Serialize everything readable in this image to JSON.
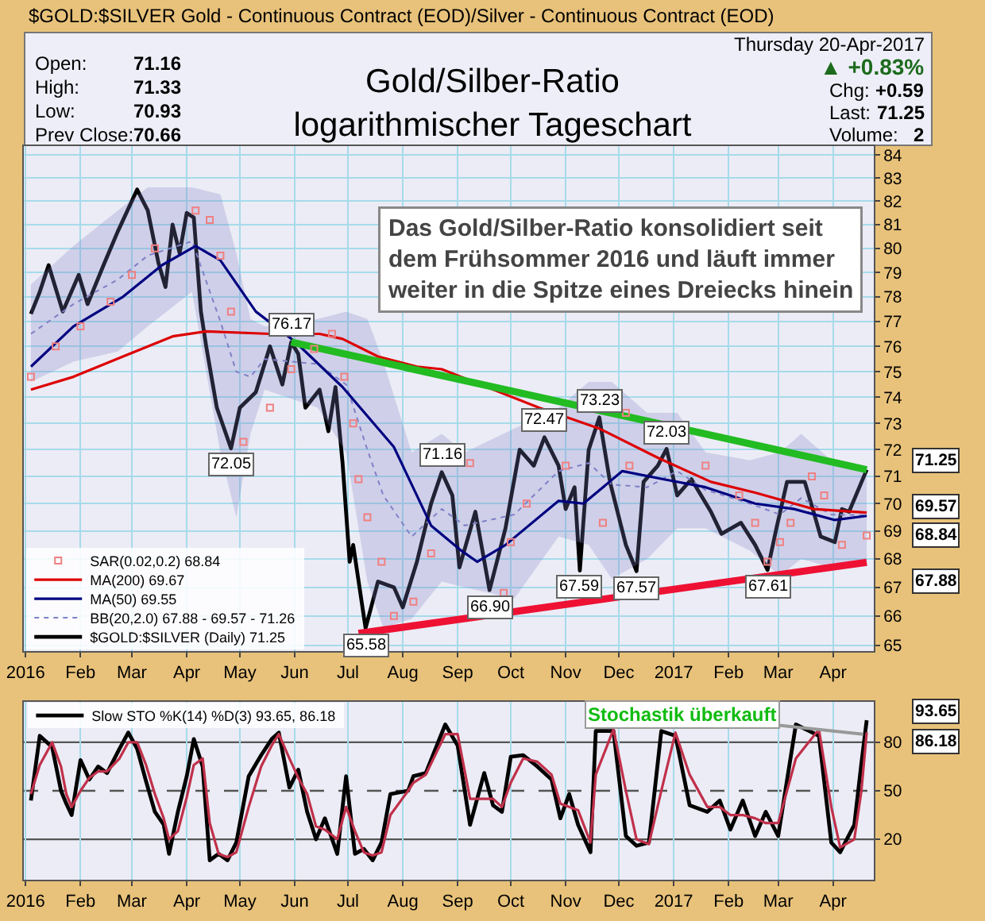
{
  "chart_data": [
    {
      "type": "line",
      "title": "Gold/Silber-Ratio\nlogarithmischer Tageschart",
      "subtitle": "$GOLD:$SILVER Gold - Continuous Contract (EOD)/Silver - Continuous Contract (EOD)",
      "x": [
        "2016-01-04",
        "2016-01-09",
        "2016-01-14",
        "2016-01-22",
        "2016-01-31",
        "2016-02-05",
        "2016-02-14",
        "2016-02-22",
        "2016-03-04",
        "2016-03-10",
        "2016-03-16",
        "2016-03-20",
        "2016-03-24",
        "2016-03-28",
        "2016-04-01",
        "2016-04-05",
        "2016-04-09",
        "2016-04-12",
        "2016-04-18",
        "2016-04-26",
        "2016-05-01",
        "2016-05-10",
        "2016-05-18",
        "2016-05-25",
        "2016-05-30",
        "2016-06-03",
        "2016-06-07",
        "2016-06-15",
        "2016-06-20",
        "2016-06-24",
        "2016-06-28",
        "2016-07-02",
        "2016-07-04",
        "2016-07-11",
        "2016-07-18",
        "2016-07-27",
        "2016-08-01",
        "2016-08-09",
        "2016-08-17",
        "2016-08-23",
        "2016-08-29",
        "2016-09-02",
        "2016-09-11",
        "2016-09-19",
        "2016-09-28",
        "2016-10-06",
        "2016-10-14",
        "2016-10-20",
        "2016-10-28",
        "2016-11-01",
        "2016-11-06",
        "2016-11-09",
        "2016-11-14",
        "2016-11-20",
        "2016-11-26",
        "2016-12-05",
        "2016-12-11",
        "2016-12-15",
        "2016-12-23",
        "2016-12-28",
        "2017-01-03",
        "2017-01-11",
        "2017-01-22",
        "2017-01-28",
        "2017-02-08",
        "2017-02-16",
        "2017-02-23",
        "2017-02-28",
        "2017-03-06",
        "2017-03-16",
        "2017-03-21",
        "2017-03-25",
        "2017-04-02",
        "2017-04-06",
        "2017-04-10",
        "2017-04-20"
      ],
      "series": [
        {
          "name": "$GOLD:$SILVER (Daily) 71.25",
          "color": "#000000",
          "values": [
            77.3,
            78.2,
            79.3,
            77.4,
            78.9,
            77.7,
            79.3,
            80.7,
            82.5,
            81.6,
            79.4,
            78.4,
            81.0,
            79.8,
            81.5,
            81.3,
            77.4,
            76.0,
            73.6,
            72.05,
            73.6,
            74.2,
            76.0,
            74.5,
            76.17,
            75.7,
            73.6,
            74.3,
            72.7,
            74.4,
            71.5,
            67.9,
            68.5,
            65.58,
            67.2,
            67.0,
            66.3,
            67.9,
            70.0,
            71.16,
            70.3,
            67.7,
            69.7,
            66.9,
            69.1,
            72.0,
            71.4,
            72.47,
            71.4,
            69.8,
            70.6,
            67.59,
            72.0,
            73.23,
            70.8,
            68.5,
            67.57,
            70.8,
            71.4,
            72.03,
            70.3,
            70.9,
            69.7,
            68.9,
            69.3,
            68.5,
            67.61,
            69.1,
            70.8,
            70.8,
            69.7,
            68.8,
            68.6,
            69.8,
            69.7,
            71.25
          ]
        },
        {
          "name": "BB(20,2.0) 67.88 - 69.57 - 71.26",
          "color": "#8080c8",
          "line_style": "dotted",
          "x": [
            "2016-01-04",
            "2016-01-28",
            "2016-02-22",
            "2016-03-10",
            "2016-04-04",
            "2016-04-20",
            "2016-04-29",
            "2016-05-07",
            "2016-05-15",
            "2016-06-14",
            "2016-06-30",
            "2016-07-12",
            "2016-07-21",
            "2016-08-06",
            "2016-08-23",
            "2016-09-05",
            "2016-10-03",
            "2016-10-28",
            "2016-11-14",
            "2016-11-27",
            "2016-12-17",
            "2017-01-03",
            "2017-01-19",
            "2017-02-13",
            "2017-03-02",
            "2017-03-14",
            "2017-03-31",
            "2017-04-20"
          ],
          "values": [
            76.5,
            77.7,
            78.7,
            79.7,
            80.3,
            77.0,
            75.0,
            74.8,
            75.5,
            75.3,
            74.5,
            72.0,
            70.3,
            68.8,
            69.8,
            69.2,
            69.6,
            71.2,
            71.5,
            70.7,
            70.6,
            71.2,
            70.5,
            70.0,
            69.6,
            70.2,
            69.6,
            69.57
          ],
          "lower": [
            74.6,
            75.4,
            75.8,
            76.8,
            78.2,
            71.9,
            69.5,
            72.6,
            74.3,
            73.6,
            71.9,
            67.2,
            65.6,
            65.9,
            67.2,
            67.0,
            66.6,
            68.8,
            68.5,
            67.3,
            68.0,
            69.1,
            69.1,
            68.3,
            67.4,
            68.0,
            67.7,
            67.88
          ],
          "upper": [
            78.5,
            80.1,
            81.6,
            82.6,
            82.6,
            82.3,
            79.8,
            77.1,
            76.8,
            77.1,
            77.4,
            77.1,
            75.4,
            71.9,
            72.6,
            71.9,
            72.8,
            73.6,
            74.6,
            74.6,
            73.4,
            73.4,
            71.9,
            71.6,
            71.9,
            72.6,
            71.6,
            71.26
          ]
        },
        {
          "name": "SAR(0.02,0.2) 68.84",
          "type": "scatter",
          "marker": "square",
          "color": "#f08080",
          "x": [
            "2016-01-04",
            "2016-01-18",
            "2016-02-01",
            "2016-02-18",
            "2016-03-01",
            "2016-03-14",
            "2016-04-06",
            "2016-04-14",
            "2016-04-20",
            "2016-04-26",
            "2016-05-03",
            "2016-05-18",
            "2016-05-30",
            "2016-06-12",
            "2016-06-22",
            "2016-06-29",
            "2016-07-04",
            "2016-07-07",
            "2016-07-12",
            "2016-07-20",
            "2016-07-27",
            "2016-08-07",
            "2016-08-17",
            "2016-09-08",
            "2016-09-27",
            "2016-10-01",
            "2016-10-10",
            "2016-11-01",
            "2016-11-22",
            "2016-12-05",
            "2016-12-07",
            "2017-01-19",
            "2017-02-07",
            "2017-02-16",
            "2017-02-23",
            "2017-03-02",
            "2017-03-08",
            "2017-03-20",
            "2017-03-27",
            "2017-04-06",
            "2017-04-20"
          ],
          "values": [
            74.8,
            76.0,
            76.8,
            77.8,
            78.9,
            80.0,
            81.6,
            81.2,
            79.7,
            77.4,
            72.3,
            73.6,
            75.1,
            75.9,
            76.5,
            74.8,
            73.0,
            70.9,
            69.5,
            67.9,
            66.0,
            66.5,
            68.2,
            71.5,
            66.8,
            68.6,
            70.0,
            71.4,
            69.3,
            73.4,
            71.4,
            71.4,
            70.3,
            69.3,
            67.9,
            68.6,
            69.3,
            71.0,
            70.3,
            68.5,
            68.84
          ]
        },
        {
          "name": "MA(50) 69.55",
          "color": "#000080",
          "x": [
            "2016-01-04",
            "2016-01-28",
            "2016-02-25",
            "2016-03-18",
            "2016-04-06",
            "2016-04-20",
            "2016-05-10",
            "2016-06-01",
            "2016-06-28",
            "2016-07-27",
            "2016-08-17",
            "2016-09-03",
            "2016-09-12",
            "2016-09-28",
            "2016-10-28",
            "2016-11-11",
            "2016-12-03",
            "2016-12-26",
            "2017-01-19",
            "2017-02-16",
            "2017-03-10",
            "2017-04-02",
            "2017-04-20"
          ],
          "values": [
            75.2,
            76.8,
            78.0,
            79.3,
            80.1,
            79.5,
            77.4,
            76.2,
            74.4,
            72.1,
            69.2,
            68.3,
            67.9,
            68.5,
            70.1,
            70.0,
            71.2,
            70.9,
            70.6,
            70.0,
            69.8,
            69.4,
            69.55
          ]
        },
        {
          "name": "MA(200) 69.67",
          "color": "#dd0000",
          "x": [
            "2016-01-04",
            "2016-01-28",
            "2016-02-25",
            "2016-03-24",
            "2016-04-12",
            "2016-05-18",
            "2016-06-15",
            "2016-06-28",
            "2016-07-18",
            "2016-08-09",
            "2016-08-23",
            "2016-10-17",
            "2016-11-20",
            "2016-12-23",
            "2017-01-22",
            "2017-02-16",
            "2017-03-21",
            "2017-04-20"
          ],
          "values": [
            74.3,
            74.8,
            75.6,
            76.4,
            76.6,
            76.5,
            76.5,
            76.3,
            75.6,
            75.2,
            75.1,
            73.6,
            72.8,
            71.7,
            70.8,
            70.4,
            69.8,
            69.67
          ]
        },
        {
          "color": "#22bb22",
          "x": [
            "2016-05-30",
            "2017-04-20"
          ],
          "values": [
            76.17,
            71.25
          ]
        },
        {
          "color": "#ee1133",
          "x": [
            "2016-07-07",
            "2017-04-20"
          ],
          "values": [
            65.4,
            67.88
          ]
        }
      ],
      "xlim": [
        "2015-12-31",
        "2017-04-24"
      ],
      "xticks": [
        {
          "value": "2016-01-01",
          "label": "2016"
        },
        {
          "value": "2016-02-01",
          "label": "Feb"
        },
        {
          "value": "2016-03-01",
          "label": "Mar"
        },
        {
          "value": "2016-04-01",
          "label": "Apr"
        },
        {
          "value": "2016-05-01",
          "label": "May"
        },
        {
          "value": "2016-06-01",
          "label": "Jun"
        },
        {
          "value": "2016-07-01",
          "label": "Jul"
        },
        {
          "value": "2016-08-01",
          "label": "Aug"
        },
        {
          "value": "2016-09-01",
          "label": "Sep"
        },
        {
          "value": "2016-10-01",
          "label": "Oct"
        },
        {
          "value": "2016-11-01",
          "label": "Nov"
        },
        {
          "value": "2016-12-01",
          "label": "Dec"
        },
        {
          "value": "2017-01-01",
          "label": "2017"
        },
        {
          "value": "2017-02-01",
          "label": "Feb"
        },
        {
          "value": "2017-03-01",
          "label": "Mar"
        },
        {
          "value": "2017-04-01",
          "label": "Apr"
        }
      ],
      "ylim": [
        64.8,
        84.4
      ],
      "yticks": [
        65,
        66,
        67,
        68,
        69,
        70,
        71,
        72,
        73,
        74,
        75,
        76,
        77,
        78,
        79,
        80,
        81,
        82,
        83,
        84
      ],
      "log": true,
      "grid": true,
      "legend": "bottom left",
      "annotations": [
        "Open:",
        "71.16",
        "High:",
        "71.33",
        "Low:",
        "70.93",
        "Prev Close:",
        "70.66",
        "Thursday 20-Apr-2017",
        "▲ +0.83%",
        "Chg:",
        "+0.59",
        "Last:",
        "71.25",
        "Volume:",
        "2",
        "Das Gold/Silber-Ratio konsolidiert seit\ndem Frühsommer 2016 und läuft immer\nweiter in die Spitze eines Dreiecks hinein",
        {
          "text": "72.05",
          "x": "2016-04-26",
          "y": 72.05
        },
        {
          "text": "76.17",
          "x": "2016-05-30",
          "y": 76.17
        },
        {
          "text": "65.58",
          "x": "2016-07-11",
          "y": 65.58
        },
        {
          "text": "71.16",
          "x": "2016-08-23",
          "y": 71.16
        },
        {
          "text": "66.90",
          "x": "2016-09-19",
          "y": 66.9
        },
        {
          "text": "72.47",
          "x": "2016-10-20",
          "y": 72.47
        },
        {
          "text": "67.59",
          "x": "2016-11-09",
          "y": 67.59
        },
        {
          "text": "73.23",
          "x": "2016-11-20",
          "y": 73.23
        },
        {
          "text": "67.57",
          "x": "2016-12-11",
          "y": 67.57
        },
        {
          "text": "72.03",
          "x": "2016-12-28",
          "y": 72.03
        },
        {
          "text": "67.61",
          "x": "2017-02-23",
          "y": 67.61
        },
        {
          "text": "71.25",
          "x": "2017-04-20",
          "y": 71.25
        },
        {
          "text": "69.57",
          "x": "2017-04-20",
          "y": 69.57
        },
        {
          "text": "68.84",
          "x": "2017-04-20",
          "y": 68.84
        },
        {
          "text": "67.88",
          "x": "2017-04-20",
          "y": 67.88
        }
      ]
    },
    {
      "type": "line",
      "x": [
        "2016-01-04",
        "2016-01-09",
        "2016-01-16",
        "2016-01-21",
        "2016-01-24",
        "2016-01-27",
        "2016-02-01",
        "2016-02-06",
        "2016-02-11",
        "2016-02-16",
        "2016-02-23",
        "2016-02-28",
        "2016-03-04",
        "2016-03-09",
        "2016-03-14",
        "2016-03-19",
        "2016-03-22",
        "2016-03-27",
        "2016-04-01",
        "2016-04-05",
        "2016-04-10",
        "2016-04-14",
        "2016-04-19",
        "2016-04-24",
        "2016-04-29",
        "2016-05-06",
        "2016-05-13",
        "2016-05-19",
        "2016-05-23",
        "2016-05-29",
        "2016-06-03",
        "2016-06-08",
        "2016-06-13",
        "2016-06-18",
        "2016-06-25",
        "2016-06-30",
        "2016-07-05",
        "2016-07-10",
        "2016-07-15",
        "2016-07-20",
        "2016-07-25",
        "2016-08-04",
        "2016-08-07",
        "2016-08-14",
        "2016-08-25",
        "2016-09-01",
        "2016-09-08",
        "2016-09-16",
        "2016-09-21",
        "2016-09-26",
        "2016-10-01",
        "2016-10-08",
        "2016-10-16",
        "2016-10-24",
        "2016-10-29",
        "2016-11-03",
        "2016-11-08",
        "2016-11-15",
        "2016-11-18",
        "2016-11-28",
        "2016-12-05",
        "2016-12-11",
        "2016-12-18",
        "2016-12-25",
        "2017-01-02",
        "2017-01-10",
        "2017-01-20",
        "2017-01-27",
        "2017-02-02",
        "2017-02-09",
        "2017-02-16",
        "2017-02-22",
        "2017-03-01",
        "2017-03-11",
        "2017-03-24",
        "2017-03-31",
        "2017-04-05",
        "2017-04-13",
        "2017-04-17",
        "2017-04-20"
      ],
      "series": [
        {
          "name": "Slow STO %K(14) %D(3) 93.65, 86.18",
          "color": "#000000",
          "values": [
            44,
            84,
            77,
            50,
            42,
            35,
            69,
            57,
            65,
            61,
            76,
            86,
            76,
            56,
            37,
            29,
            11,
            37,
            59,
            82,
            65,
            7,
            11,
            7,
            18,
            59,
            72,
            82,
            86,
            52,
            63,
            37,
            20,
            33,
            11,
            59,
            11,
            14,
            7,
            18,
            48,
            50,
            59,
            61,
            91,
            78,
            29,
            61,
            41,
            37,
            71,
            72,
            65,
            57,
            33,
            48,
            29,
            12,
            87,
            87,
            22,
            16,
            18,
            87,
            84,
            41,
            37,
            44,
            26,
            44,
            22,
            37,
            22,
            91,
            84,
            18,
            12,
            29,
            67,
            93.65
          ]
        },
        {
          "color": "#c0304a",
          "values": [
            48,
            66,
            80,
            65,
            48,
            40,
            50,
            58,
            62,
            62,
            70,
            80,
            80,
            66,
            48,
            33,
            20,
            25,
            46,
            66,
            70,
            30,
            11,
            9,
            12,
            40,
            65,
            78,
            85,
            70,
            58,
            48,
            28,
            26,
            20,
            40,
            25,
            12,
            10,
            12,
            35,
            50,
            55,
            60,
            85,
            85,
            45,
            45,
            45,
            40,
            55,
            70,
            68,
            60,
            42,
            40,
            38,
            18,
            60,
            88,
            50,
            20,
            17,
            50,
            86,
            60,
            40,
            40,
            35,
            35,
            33,
            30,
            30,
            70,
            88,
            40,
            15,
            20,
            50,
            86.18
          ]
        }
      ],
      "xlim": [
        "2015-12-31",
        "2017-04-24"
      ],
      "xticks": [
        {
          "value": "2016-01-01",
          "label": "2016"
        },
        {
          "value": "2016-02-01",
          "label": "Feb"
        },
        {
          "value": "2016-03-01",
          "label": "Mar"
        },
        {
          "value": "2016-04-01",
          "label": "Apr"
        },
        {
          "value": "2016-05-01",
          "label": "May"
        },
        {
          "value": "2016-06-01",
          "label": "Jun"
        },
        {
          "value": "2016-07-01",
          "label": "Jul"
        },
        {
          "value": "2016-08-01",
          "label": "Aug"
        },
        {
          "value": "2016-09-01",
          "label": "Sep"
        },
        {
          "value": "2016-10-01",
          "label": "Oct"
        },
        {
          "value": "2016-11-01",
          "label": "Nov"
        },
        {
          "value": "2016-12-01",
          "label": "Dec"
        },
        {
          "value": "2017-01-01",
          "label": "2017"
        },
        {
          "value": "2017-02-01",
          "label": "Feb"
        },
        {
          "value": "2017-03-01",
          "label": "Mar"
        },
        {
          "value": "2017-04-01",
          "label": "Apr"
        }
      ],
      "ylim": [
        -5,
        105
      ],
      "yticks": [
        20,
        50,
        80
      ],
      "grid": "x",
      "legend": "top left",
      "ref_lines": [
        {
          "axis": "y",
          "value": 20,
          "color": "#555555"
        },
        {
          "axis": "y",
          "value": 50,
          "color": "#555555",
          "line_style": "dashed"
        },
        {
          "axis": "y",
          "value": 80,
          "color": "#555555"
        }
      ],
      "annotations": [
        {
          "text": "Stochastik überkauft",
          "x": "2017-04-18",
          "y": 85
        },
        {
          "text": "93.65",
          "x": "2017-04-20",
          "y": 93.65
        },
        {
          "text": "86.18",
          "x": "2017-04-20",
          "y": 86.18
        }
      ]
    }
  ]
}
